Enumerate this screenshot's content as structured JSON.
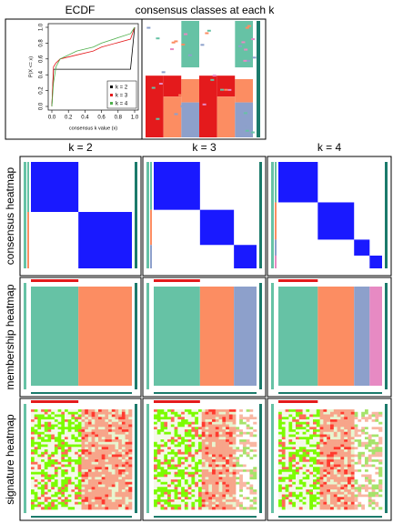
{
  "top": {
    "ecdf_title": "ECDF",
    "classes_title": "consensus classes at each k"
  },
  "chart_data": {
    "type": "line",
    "xlabel": "consensus k value (x)",
    "ylabel": "P(X <= x)",
    "x": [
      0,
      0.02,
      0.05,
      0.1,
      0.3,
      0.5,
      0.6,
      0.95,
      1
    ],
    "series": [
      {
        "name": "k = 2",
        "color": "#000000",
        "values": [
          0,
          0.47,
          0.47,
          0.47,
          0.47,
          0.47,
          0.47,
          0.47,
          1
        ]
      },
      {
        "name": "k = 3",
        "color": "#E41A1C",
        "values": [
          0,
          0.5,
          0.55,
          0.6,
          0.65,
          0.7,
          0.75,
          0.85,
          1
        ]
      },
      {
        "name": "k = 4",
        "color": "#4DAF4A",
        "values": [
          0,
          0.3,
          0.5,
          0.6,
          0.7,
          0.75,
          0.8,
          0.92,
          1
        ]
      }
    ],
    "xlim": [
      0,
      1
    ],
    "ylim": [
      0,
      1
    ],
    "xticks": [
      {
        "value": 0,
        "label": "0.0"
      },
      {
        "value": 0.2,
        "label": "0.2"
      },
      {
        "value": 0.4,
        "label": "0.4"
      },
      {
        "value": 0.6,
        "label": "0.6"
      },
      {
        "value": 0.8,
        "label": "0.8"
      },
      {
        "value": 1,
        "label": "1.0"
      }
    ],
    "yticks": [
      {
        "value": 0,
        "label": "0.0"
      },
      {
        "value": 0.2,
        "label": "0.2"
      },
      {
        "value": 0.4,
        "label": "0.4"
      },
      {
        "value": 0.6,
        "label": "0.6"
      },
      {
        "value": 0.8,
        "label": "0.8"
      },
      {
        "value": 1,
        "label": "1.0"
      }
    ],
    "legend": "lower right"
  },
  "columns": [
    "k = 2",
    "k = 3",
    "k = 4"
  ],
  "rows": [
    "consensus heatmap",
    "membership heatmap",
    "signature heatmap"
  ]
}
